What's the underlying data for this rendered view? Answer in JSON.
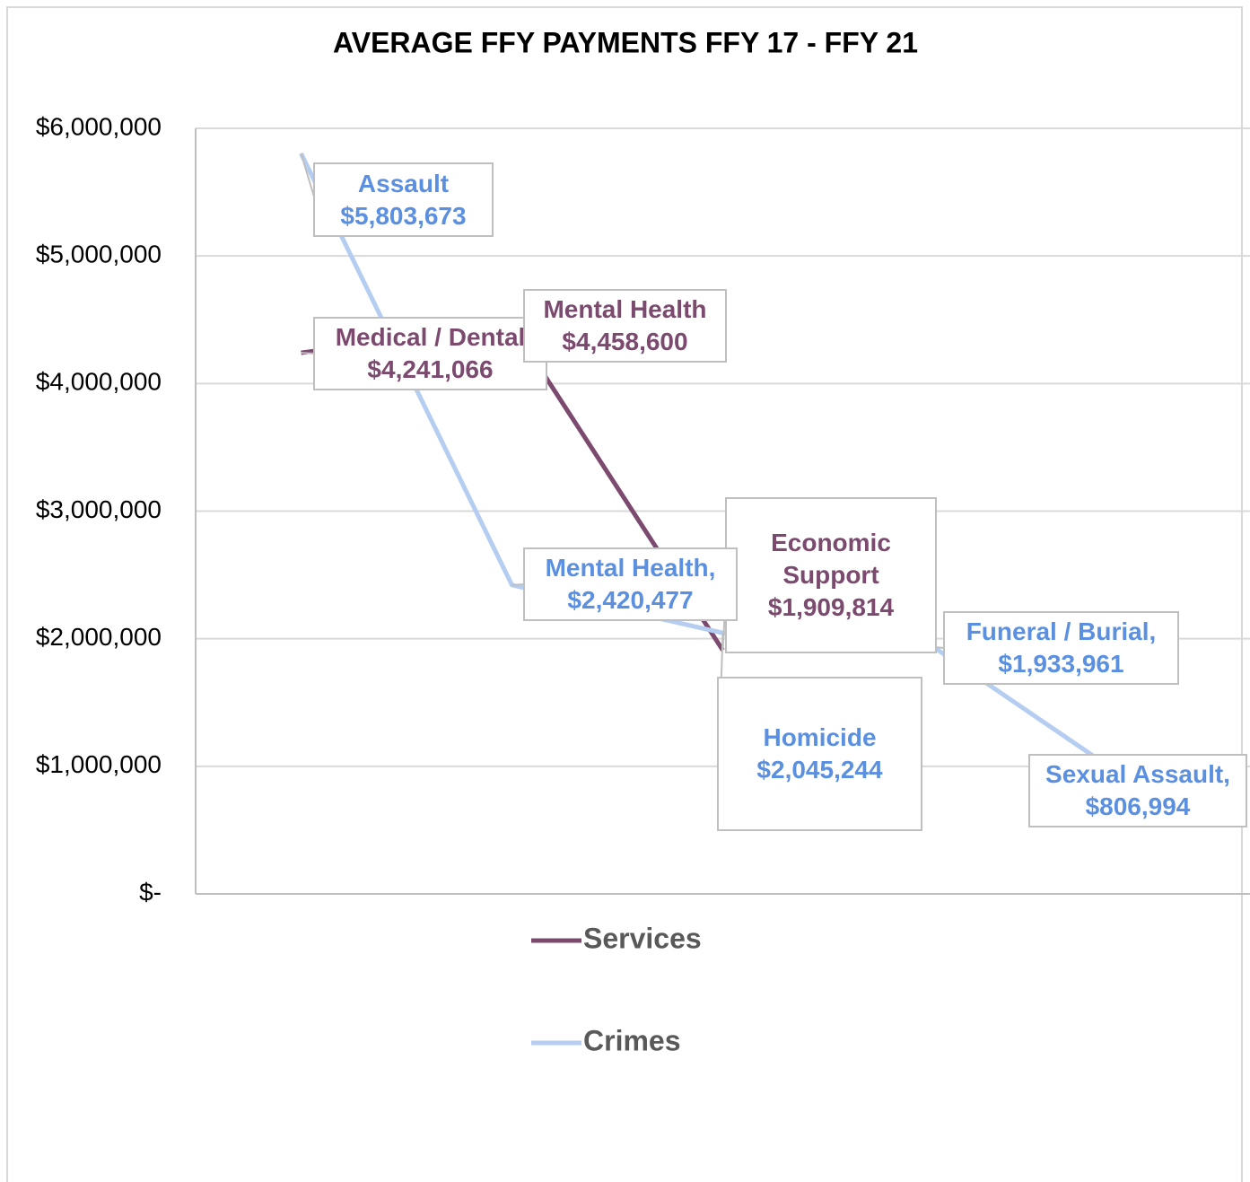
{
  "chart_data": {
    "type": "line",
    "title": "AVERAGE FFY PAYMENTS FFY 17 - FFY 21",
    "categories": [
      null,
      null,
      null,
      null,
      null
    ],
    "ylim": [
      0,
      6000000
    ],
    "yticks": [
      {
        "value": 0,
        "label": "$-"
      },
      {
        "value": 1000000,
        "label": "$1,000,000"
      },
      {
        "value": 2000000,
        "label": "$2,000,000"
      },
      {
        "value": 3000000,
        "label": "$3,000,000"
      },
      {
        "value": 4000000,
        "label": "$4,000,000"
      },
      {
        "value": 5000000,
        "label": "$5,000,000"
      },
      {
        "value": 6000000,
        "label": "$6,000,000"
      }
    ],
    "grid": true,
    "legend": "bottom",
    "series": [
      {
        "name": "Services",
        "color": "#7b4a6e",
        "label_color": "#7b4a6e",
        "values": [
          4241066,
          4458600,
          1909814,
          null,
          null
        ],
        "label_names": [
          "Medical / Dental",
          "Mental Health",
          "Economic Support",
          null,
          null
        ],
        "value_labels": [
          "$4,241,066",
          "$4,458,600",
          "$1,909,814",
          null,
          null
        ]
      },
      {
        "name": "Crimes",
        "color": "#b4cdf0",
        "label_color": "#5b8fe0",
        "values": [
          5803673,
          2420477,
          2045244,
          1933961,
          806994
        ],
        "label_names": [
          "Assault",
          "Mental Health,",
          "Homicide",
          "Funeral / Burial,",
          "Sexual Assault,"
        ],
        "value_labels": [
          "$5,803,673",
          "$2,420,477",
          "$2,045,244",
          "$1,933,961",
          "$806,994"
        ]
      }
    ]
  }
}
